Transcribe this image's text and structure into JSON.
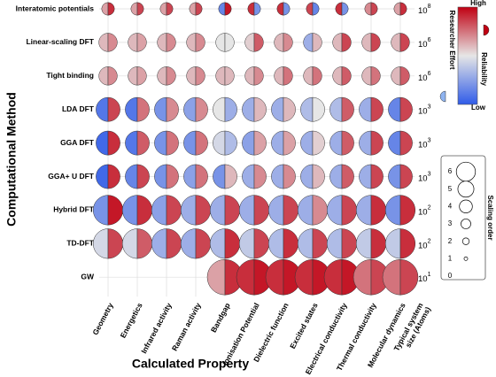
{
  "chart_data": {
    "type": "split-bubble",
    "x_label": "Calculated Property",
    "y_label": "Computational Method",
    "categories": [
      "Geometry",
      "Energetics",
      "Infrared activity",
      "Raman activity",
      "Bandgap",
      "Ionisation Potential",
      "Dielectric function",
      "Excited states",
      "Electrical conductivity",
      "Thermal conductivity",
      "Molecular dynamics"
    ],
    "size_column_label": [
      "Typical system",
      "size (Atoms)"
    ],
    "rows": [
      {
        "name": "Interatomic potentials",
        "scaling_order": 1,
        "system_size": {
          "base": "10",
          "exponent": "8"
        },
        "effort": [
          0.65,
          0.65,
          0.65,
          0.65,
          0.15,
          0.9,
          0.9,
          0.85,
          0.9,
          0.7,
          0.65
        ],
        "reliability": [
          0.9,
          0.85,
          0.85,
          0.85,
          0.95,
          0.2,
          0.2,
          0.15,
          0.2,
          0.85,
          0.9
        ]
      },
      {
        "name": "Linear-scaling DFT",
        "scaling_order": 2,
        "system_size": {
          "base": "10",
          "exponent": "6"
        },
        "effort": [
          0.6,
          0.6,
          0.6,
          0.6,
          0.5,
          0.55,
          0.6,
          0.3,
          0.6,
          0.6,
          0.6
        ],
        "reliability": [
          0.7,
          0.65,
          0.7,
          0.7,
          0.5,
          0.8,
          0.7,
          0.6,
          0.85,
          0.85,
          0.85
        ]
      },
      {
        "name": "Tight binding",
        "scaling_order": 2,
        "system_size": {
          "base": "10",
          "exponent": "6"
        },
        "effort": [
          0.6,
          0.6,
          0.6,
          0.6,
          0.6,
          0.6,
          0.6,
          0.6,
          0.6,
          0.6,
          0.6
        ],
        "reliability": [
          0.7,
          0.65,
          0.7,
          0.7,
          0.6,
          0.7,
          0.75,
          0.75,
          0.8,
          0.75,
          0.8
        ]
      },
      {
        "name": "LDA DFT",
        "scaling_order": 3,
        "system_size": {
          "base": "10",
          "exponent": "3"
        },
        "effort": [
          0.1,
          0.1,
          0.2,
          0.25,
          0.5,
          0.3,
          0.3,
          0.35,
          0.35,
          0.3,
          0.15
        ],
        "reliability": [
          0.85,
          0.75,
          0.7,
          0.7,
          0.3,
          0.6,
          0.6,
          0.5,
          0.8,
          0.85,
          0.85
        ]
      },
      {
        "name": "GGA DFT",
        "scaling_order": 3,
        "system_size": {
          "base": "10",
          "exponent": "3"
        },
        "effort": [
          0.05,
          0.1,
          0.2,
          0.2,
          0.45,
          0.25,
          0.3,
          0.3,
          0.3,
          0.3,
          0.15
        ],
        "reliability": [
          0.9,
          0.8,
          0.75,
          0.75,
          0.35,
          0.65,
          0.65,
          0.55,
          0.8,
          0.85,
          0.85
        ]
      },
      {
        "name": "GGA+ U DFT",
        "scaling_order": 3,
        "system_size": {
          "base": "10",
          "exponent": "3"
        },
        "effort": [
          0.05,
          0.15,
          0.2,
          0.25,
          0.2,
          0.3,
          0.3,
          0.3,
          0.3,
          0.3,
          0.2
        ],
        "reliability": [
          0.9,
          0.85,
          0.75,
          0.75,
          0.6,
          0.7,
          0.7,
          0.6,
          0.8,
          0.85,
          0.85
        ]
      },
      {
        "name": "Hybrid DFT",
        "scaling_order": 4,
        "system_size": {
          "base": "10",
          "exponent": "2"
        },
        "effort": [
          0.2,
          0.2,
          0.25,
          0.3,
          0.3,
          0.3,
          0.3,
          0.3,
          0.3,
          0.3,
          0.2
        ],
        "reliability": [
          0.95,
          0.9,
          0.85,
          0.85,
          0.85,
          0.85,
          0.85,
          0.7,
          0.85,
          0.9,
          0.9
        ]
      },
      {
        "name": "TD-DFT",
        "scaling_order": 4,
        "system_size": {
          "base": "10",
          "exponent": "2"
        },
        "effort": [
          0.45,
          0.45,
          0.3,
          0.3,
          0.35,
          0.4,
          0.35,
          0.35,
          0.35,
          0.4,
          0.4
        ],
        "reliability": [
          0.85,
          0.8,
          0.85,
          0.85,
          0.9,
          0.85,
          0.9,
          0.85,
          0.85,
          0.9,
          0.9
        ]
      },
      {
        "name": "GW",
        "scaling_order": 5,
        "system_size": {
          "base": "10",
          "exponent": "1"
        },
        "effort": [
          null,
          null,
          null,
          null,
          0.65,
          0.9,
          0.9,
          0.9,
          0.9,
          0.75,
          0.75
        ],
        "reliability": [
          null,
          null,
          null,
          null,
          0.9,
          0.95,
          0.95,
          0.95,
          0.95,
          0.85,
          0.85
        ]
      }
    ],
    "color_scale": {
      "min": 0,
      "max": 1,
      "colors": [
        "#2f5be8",
        "#e6e6e6",
        "#c00012"
      ],
      "high_label": "High",
      "low_label": "Low",
      "effort_label": "Researcher Effort",
      "reliability_label": "Reliability"
    },
    "size_legend": {
      "title": "Scaling order",
      "ylim": [
        0,
        6
      ],
      "yticks": [
        0,
        1,
        2,
        3,
        4,
        5,
        6
      ],
      "circles": [
        1,
        2,
        3,
        4,
        5,
        6
      ]
    }
  }
}
